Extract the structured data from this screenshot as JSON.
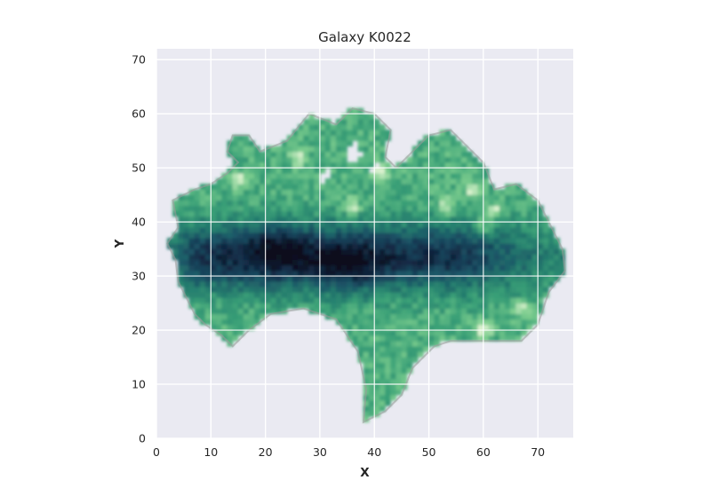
{
  "chart_data": {
    "type": "heatmap",
    "title": "Galaxy K0022",
    "xlabel": "X",
    "ylabel": "Y",
    "xlim": [
      0,
      76.5
    ],
    "ylim": [
      0,
      72
    ],
    "xticks": [
      "0",
      "10",
      "20",
      "30",
      "40",
      "50",
      "60",
      "70"
    ],
    "yticks": [
      "0",
      "10",
      "20",
      "30",
      "40",
      "50",
      "60",
      "70"
    ],
    "grid": true,
    "legend": "none",
    "colormap": [
      "#0a0c1c",
      "#14304b",
      "#1c5366",
      "#247a6d",
      "#3aa077",
      "#7ccd8e",
      "#dcf2d0"
    ],
    "background_color": "#eaeaf2",
    "grid_color": "#ffffff",
    "outline": [
      [
        4,
        29
      ],
      [
        3.5,
        33
      ],
      [
        2,
        36
      ],
      [
        4,
        39
      ],
      [
        3,
        44
      ],
      [
        7,
        46
      ],
      [
        10,
        47
      ],
      [
        13,
        49
      ],
      [
        15,
        51
      ],
      [
        13,
        53
      ],
      [
        14,
        56
      ],
      [
        17,
        56
      ],
      [
        19,
        53
      ],
      [
        24,
        55
      ],
      [
        28,
        60
      ],
      [
        33,
        58
      ],
      [
        36,
        61
      ],
      [
        40,
        60
      ],
      [
        43,
        57
      ],
      [
        42,
        52
      ],
      [
        44,
        50
      ],
      [
        47,
        53
      ],
      [
        50,
        56
      ],
      [
        54,
        57
      ],
      [
        60,
        51
      ],
      [
        62,
        46
      ],
      [
        66,
        47
      ],
      [
        70,
        44
      ],
      [
        72,
        40
      ],
      [
        74.5,
        35
      ],
      [
        75,
        31
      ],
      [
        72,
        27
      ],
      [
        70,
        21
      ],
      [
        67,
        18
      ],
      [
        59,
        18
      ],
      [
        54,
        18
      ],
      [
        51,
        17
      ],
      [
        47,
        13
      ],
      [
        45,
        8
      ],
      [
        42,
        5
      ],
      [
        38,
        3
      ],
      [
        38.5,
        9
      ],
      [
        37,
        16
      ],
      [
        33,
        22
      ],
      [
        27,
        24
      ],
      [
        21,
        23
      ],
      [
        17,
        20
      ],
      [
        14,
        17
      ],
      [
        12,
        19
      ],
      [
        9,
        21
      ],
      [
        7,
        23
      ]
    ],
    "holes": [
      [
        [
          30,
          47
        ],
        [
          33,
          49
        ],
        [
          31,
          51
        ]
      ],
      [
        [
          36,
          50
        ],
        [
          38,
          52
        ],
        [
          37,
          55
        ],
        [
          35,
          53
        ]
      ],
      [
        [
          39,
          48
        ],
        [
          41,
          50
        ],
        [
          40,
          52
        ]
      ],
      [
        [
          45,
          51
        ],
        [
          47,
          52
        ],
        [
          46,
          54
        ]
      ]
    ],
    "dark_band": {
      "x_range": [
        2,
        65
      ],
      "center_y": 33.5,
      "peaks": [
        {
          "x": 22,
          "y": 35,
          "value": 0.0
        },
        {
          "x": 35,
          "y": 32,
          "value": 0.0
        }
      ]
    },
    "bright_spots": [
      {
        "x": 58,
        "y": 46
      },
      {
        "x": 60,
        "y": 20
      },
      {
        "x": 41,
        "y": 49
      },
      {
        "x": 36,
        "y": 43
      },
      {
        "x": 60,
        "y": 39
      },
      {
        "x": 15,
        "y": 48
      },
      {
        "x": 26,
        "y": 52
      },
      {
        "x": 53,
        "y": 43
      },
      {
        "x": 67,
        "y": 24
      },
      {
        "x": 62,
        "y": 42
      }
    ]
  }
}
